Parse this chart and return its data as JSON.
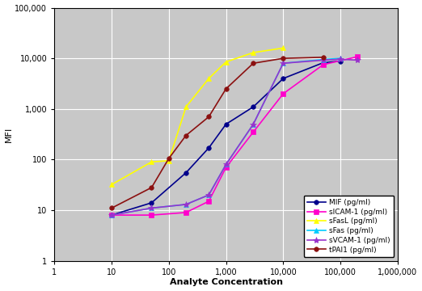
{
  "title": "",
  "xlabel": "Analyte Concentration",
  "ylabel": "MFI",
  "xlim": [
    1,
    1000000
  ],
  "ylim": [
    1,
    100000
  ],
  "plot_bg": "#c8c8c8",
  "fig_bg": "#ffffff",
  "series": [
    {
      "label": "MIF (pg/ml)",
      "color": "#00008B",
      "marker": "o",
      "markersize": 4,
      "x": [
        10,
        50,
        200,
        500,
        1000,
        3000,
        10000,
        50000,
        100000
      ],
      "y": [
        8,
        14,
        55,
        170,
        500,
        1100,
        4000,
        8200,
        8800
      ]
    },
    {
      "label": "sICAM-1 (pg/ml)",
      "color": "#FF00CC",
      "marker": "s",
      "markersize": 5,
      "x": [
        10,
        50,
        200,
        500,
        1000,
        3000,
        10000,
        50000,
        200000
      ],
      "y": [
        8,
        8,
        9,
        15,
        70,
        350,
        2000,
        7500,
        10800
      ]
    },
    {
      "label": "sFasL (pg/ml)",
      "color": "#FFFF00",
      "marker": "^",
      "markersize": 5,
      "x": [
        10,
        50,
        100,
        200,
        500,
        1000,
        3000,
        10000
      ],
      "y": [
        32,
        90,
        95,
        1100,
        4000,
        8500,
        13000,
        16000
      ]
    },
    {
      "label": "sFas (pg/ml)",
      "color": "#00CCFF",
      "marker": "^",
      "markersize": 4,
      "x": [
        10,
        50,
        200,
        500,
        1000,
        3000,
        10000,
        50000,
        100000
      ],
      "y": [
        8,
        11,
        13,
        20,
        80,
        500,
        8000,
        9500,
        10000
      ]
    },
    {
      "label": "sVCAM-1 (pg/ml)",
      "color": "#9932CC",
      "marker": "*",
      "markersize": 6,
      "x": [
        10,
        50,
        200,
        500,
        1000,
        3000,
        10000,
        50000,
        100000,
        200000
      ],
      "y": [
        8,
        11,
        13,
        20,
        80,
        500,
        8000,
        9200,
        9600,
        9200
      ]
    },
    {
      "label": "tPAI1 (pg/ml)",
      "color": "#8B1010",
      "marker": "o",
      "markersize": 4,
      "x": [
        10,
        50,
        100,
        200,
        500,
        1000,
        3000,
        10000,
        50000
      ],
      "y": [
        11,
        28,
        105,
        300,
        700,
        2500,
        8000,
        10000,
        10500
      ]
    }
  ]
}
